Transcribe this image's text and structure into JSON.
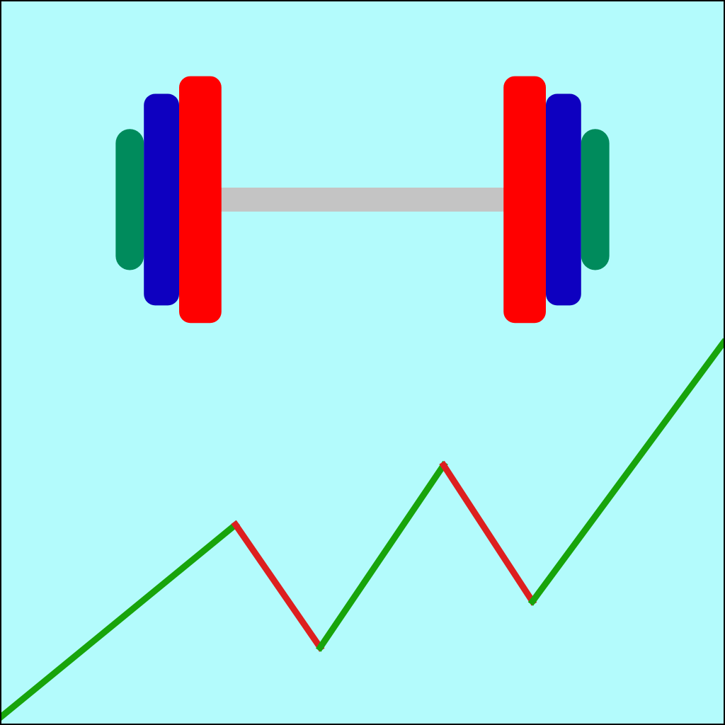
{
  "icon": {
    "name": "dumbbell-progress-icon"
  },
  "colors": {
    "background": "#b3fbfc",
    "border": "#000000",
    "bar": "#c4c4c4",
    "inner_plate": "#ff0000",
    "middle_plate": "#0e00c0",
    "outer_plate": "#008b5c",
    "trend_up": "#18a40b",
    "trend_down": "#dd1f1f"
  },
  "chart_data": {
    "type": "line",
    "x": [
      0,
      1,
      2,
      3,
      4,
      5
    ],
    "values": [
      0,
      1,
      0.36,
      1.31,
      0.6,
      1.95
    ],
    "ylim": [
      0,
      2
    ]
  }
}
